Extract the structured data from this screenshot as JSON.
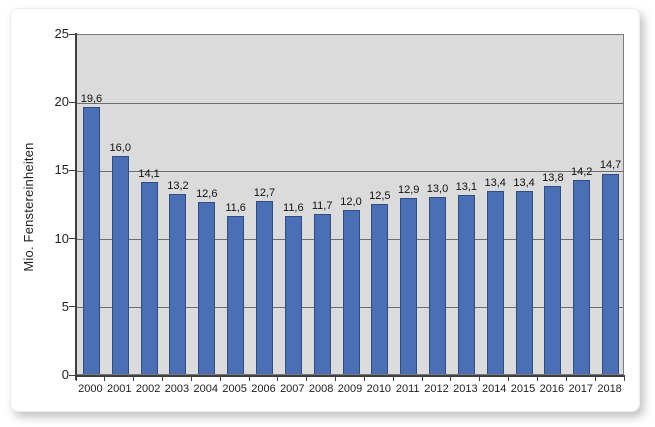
{
  "chart_data": {
    "type": "bar",
    "title": "",
    "xlabel": "",
    "ylabel": "Mio. Fenstereinheiten",
    "categories": [
      "2000",
      "2001",
      "2002",
      "2003",
      "2004",
      "2005",
      "2006",
      "2007",
      "2008",
      "2009",
      "2010",
      "2011",
      "2012",
      "2013",
      "2014",
      "2015",
      "2016",
      "2017",
      "2018"
    ],
    "values": [
      19.6,
      16.0,
      14.1,
      13.2,
      12.6,
      11.6,
      12.7,
      11.6,
      11.7,
      12.0,
      12.5,
      12.9,
      13.0,
      13.1,
      13.4,
      13.4,
      13.8,
      14.2,
      14.7
    ],
    "value_labels": [
      "19,6",
      "16,0",
      "14,1",
      "13,2",
      "12,6",
      "11,6",
      "12,7",
      "11,6",
      "11,7",
      "12,0",
      "12,5",
      "12,9",
      "13,0",
      "13,1",
      "13,4",
      "13,4",
      "13,8",
      "14,2",
      "14,7"
    ],
    "ylim": [
      0,
      25
    ],
    "yticks": [
      0,
      5,
      10,
      15,
      20,
      25
    ],
    "grid": true,
    "legend": "none",
    "colors": {
      "bar_fill": "#4a6fb5",
      "bar_border": "#2f4d85",
      "plot_background": "#dbdbdb",
      "gridline": "#6f6f6f",
      "axis": "#3f3f3f",
      "text": "#1f1f1f",
      "card_background": "#ffffff"
    }
  }
}
